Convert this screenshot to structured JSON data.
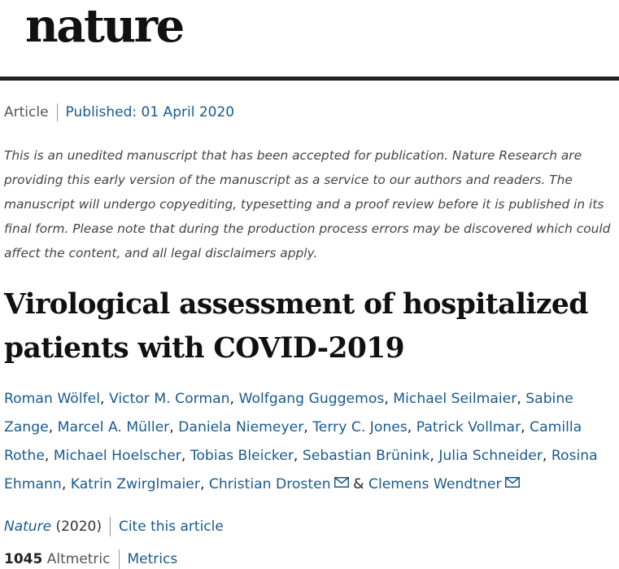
{
  "header": {
    "logo_text": "nature"
  },
  "meta": {
    "article_type": "Article",
    "published": "Published: 01 April 2020"
  },
  "notice": "This is an unedited manuscript that has been accepted for publication. Nature Research are providing this early version of the manuscript as a service to our authors and readers. The manuscript will undergo copyediting, typesetting and a proof review before it is published in its final form. Please note that during the production process errors may be discovered which could affect the content, and all legal disclaimers apply.",
  "title": "Virological assessment of hospitalized patients with COVID-2019",
  "authors": [
    "Roman Wölfel",
    "Victor M. Corman",
    "Wolfgang Guggemos",
    "Michael Seilmaier",
    "Sabine Zange",
    "Marcel A. Müller",
    "Daniela Niemeyer",
    "Terry C. Jones",
    "Patrick Vollmar",
    "Camilla Rothe",
    "Michael Hoelscher",
    "Tobias Bleicker",
    "Sebastian Brünink",
    "Julia Schneider",
    "Rosina Ehmann",
    "Katrin Zwirglmaier",
    "Christian Drosten",
    "Clemens Wendtner"
  ],
  "author_joiner": "&",
  "citation": {
    "journal": "Nature",
    "year": "(2020)",
    "cite_link": "Cite this article"
  },
  "metrics": {
    "count": "1045",
    "altmetric_label": "Altmetric",
    "metrics_link": "Metrics"
  },
  "colors": {
    "link": "#1a5a8f",
    "rule": "#222222"
  },
  "icons": {
    "email": "envelope-icon"
  }
}
